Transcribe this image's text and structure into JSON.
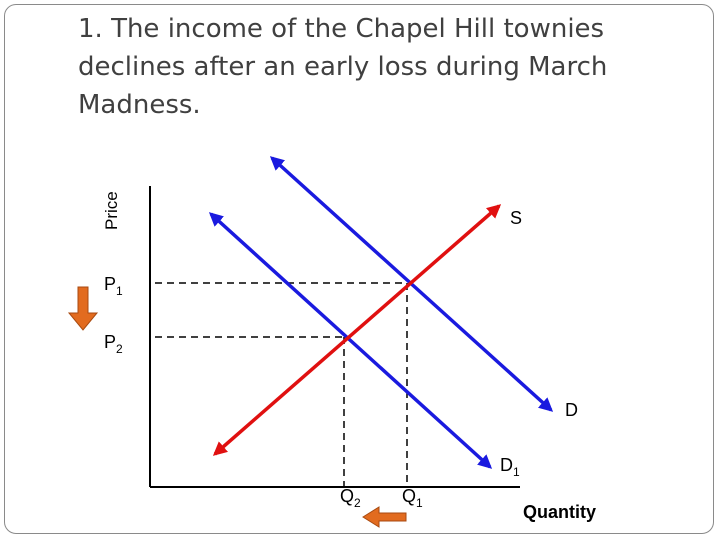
{
  "slide": {
    "title": "1. The income of the Chapel Hill townies declines after an early loss during March Madness."
  },
  "diagram": {
    "y_axis_label": "Price",
    "x_axis_label": "Quantity",
    "supply_label": "S",
    "demand_label": "D",
    "demand_new_label": {
      "main": "D",
      "sub": "1"
    },
    "p1_label": {
      "main": "P",
      "sub": "1"
    },
    "p2_label": {
      "main": "P",
      "sub": "2"
    },
    "q1_label": {
      "main": "Q",
      "sub": "1"
    },
    "q2_label": {
      "main": "Q",
      "sub": "2"
    },
    "colors": {
      "supply": "#e01010",
      "demand": "#1a1adf",
      "shift_arrow": "#e26b1f",
      "axes": "#000000",
      "title_text": "#404040"
    }
  }
}
